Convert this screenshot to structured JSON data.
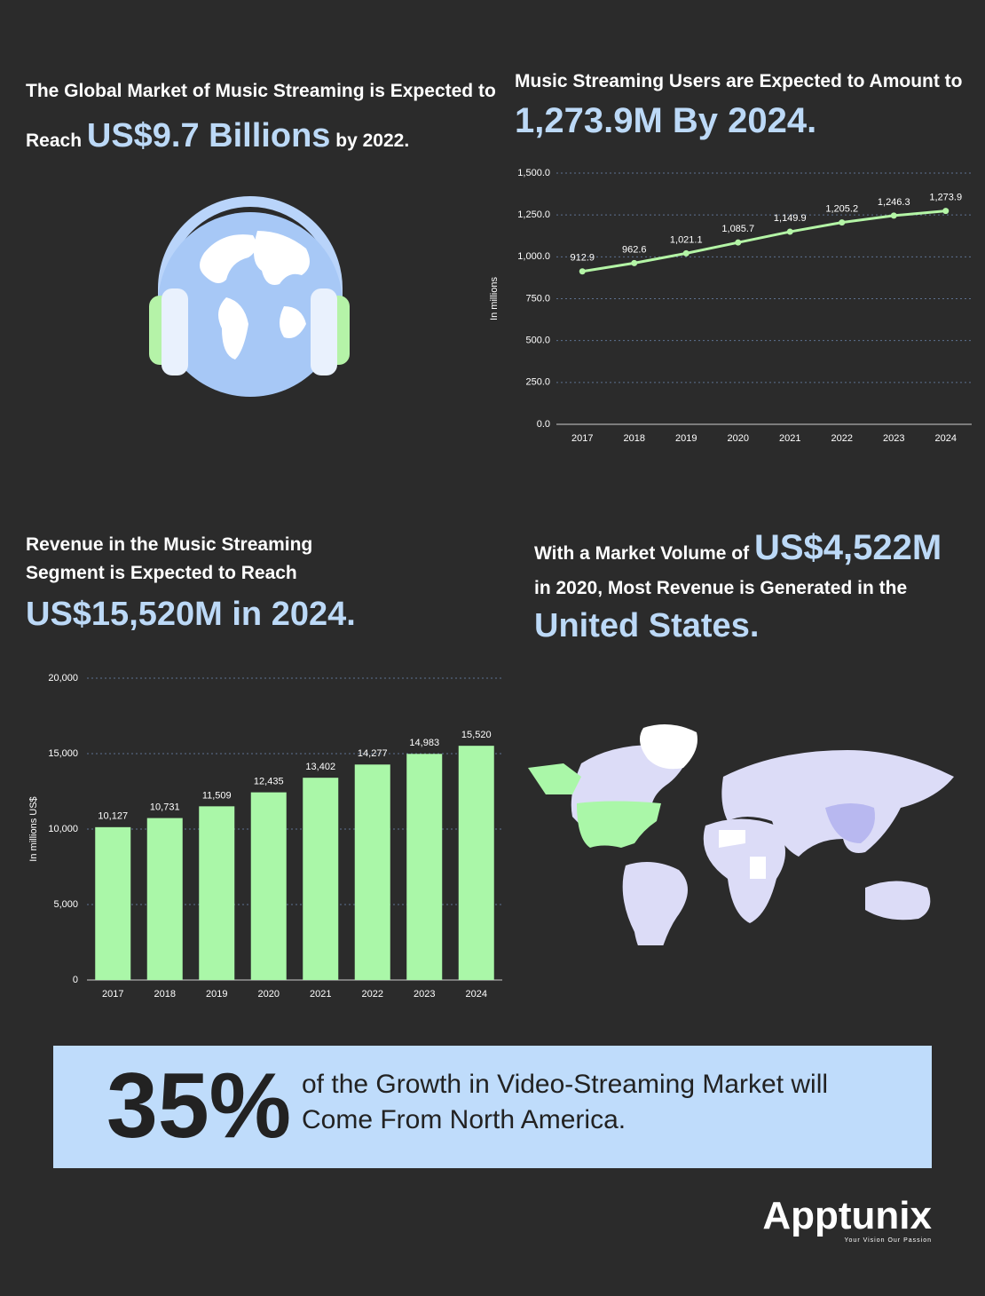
{
  "blocks": {
    "market": {
      "lead": "The Global Market of Music Streaming is Expected to Reach",
      "highlight": "US$9.7 Billions",
      "tail": "by 2022."
    },
    "users": {
      "lead": "Music Streaming Users are Expected to Amount to",
      "highlight": "1,273.9M By 2024."
    },
    "revenue": {
      "lead": "Revenue in the Music Streaming Segment is Expected to Reach",
      "highlight": "US$15,520M in 2024."
    },
    "volume": {
      "lead": "With a Market Volume of",
      "highlight": "US$4,522M",
      "middle": "in 2020, Most Revenue is Generated in the",
      "country": "United States."
    }
  },
  "chart_data": [
    {
      "type": "line",
      "y_label": "In millions",
      "categories": [
        "2017",
        "2018",
        "2019",
        "2020",
        "2021",
        "2022",
        "2023",
        "2024"
      ],
      "values": [
        912.9,
        962.6,
        1021.1,
        1085.7,
        1149.9,
        1205.2,
        1246.3,
        1273.9
      ],
      "value_labels": [
        "912.9",
        "962.6",
        "1,021.1",
        "1,085.7",
        "1,149.9",
        "1,205.2",
        "1,246.3",
        "1,273.9"
      ],
      "color": "#b4f5a6",
      "ylim": [
        0,
        1500
      ],
      "yticks": [
        {
          "value": 0,
          "label": "0.0"
        },
        {
          "value": 250,
          "label": "250.0"
        },
        {
          "value": 500,
          "label": "500.0"
        },
        {
          "value": 750,
          "label": "750.0"
        },
        {
          "value": 1000,
          "label": "1,000.0"
        },
        {
          "value": 1250,
          "label": "1,250.0"
        },
        {
          "value": 1500,
          "label": "1,500.0"
        }
      ],
      "grid": true
    },
    {
      "type": "bar",
      "y_label": "In millions US$",
      "categories": [
        "2017",
        "2018",
        "2019",
        "2020",
        "2021",
        "2022",
        "2023",
        "2024"
      ],
      "values": [
        10127,
        10731,
        11509,
        12435,
        13402,
        14277,
        14983,
        15520
      ],
      "value_labels": [
        "10,127",
        "10,731",
        "11,509",
        "12,435",
        "13,402",
        "14,277",
        "14,983",
        "15,520"
      ],
      "color": "#aaf7a8",
      "ylim": [
        0,
        20000
      ],
      "yticks": [
        0,
        {
          "value": 5000,
          "label": "5,000"
        },
        {
          "value": 10000,
          "label": "10,000"
        },
        {
          "value": 15000,
          "label": "15,000"
        },
        {
          "value": 20000,
          "label": "20,000"
        }
      ],
      "grid": true
    }
  ],
  "callout": {
    "figure": "35%",
    "text": "of the Growth in Video-Streaming Market will Come From North America."
  },
  "logo": {
    "name": "Apptunix",
    "tagline": "Your Vision Our Passion"
  }
}
